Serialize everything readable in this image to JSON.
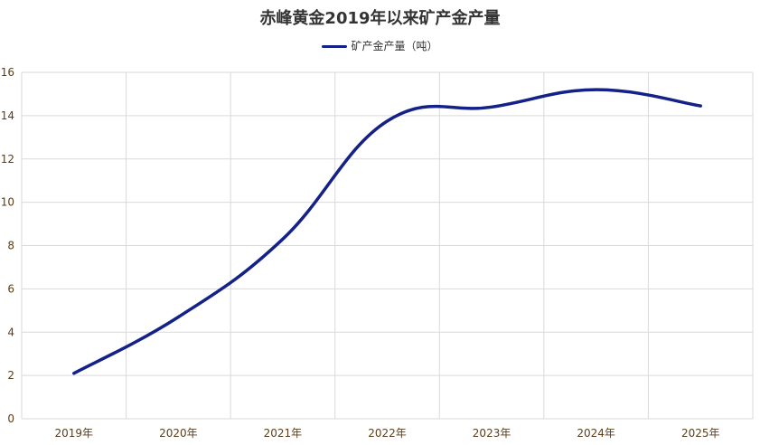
{
  "chart_data": {
    "type": "line",
    "title": "赤峰黄金2019年以来矿产金产量",
    "categories": [
      "2019年",
      "2020年",
      "2021年",
      "2022年",
      "2023年",
      "2024年",
      "2025年"
    ],
    "series": [
      {
        "name": "矿产金产量（吨）",
        "values": [
          2.1,
          4.7,
          8.3,
          13.75,
          14.4,
          15.2,
          14.45
        ],
        "color": "#132188"
      }
    ],
    "ylim": [
      0,
      16
    ],
    "yticks": [
      "0",
      "2",
      "4",
      "6",
      "8",
      "10",
      "12",
      "14",
      "16"
    ],
    "smooth": true,
    "grid": true,
    "legend": "top-center"
  }
}
